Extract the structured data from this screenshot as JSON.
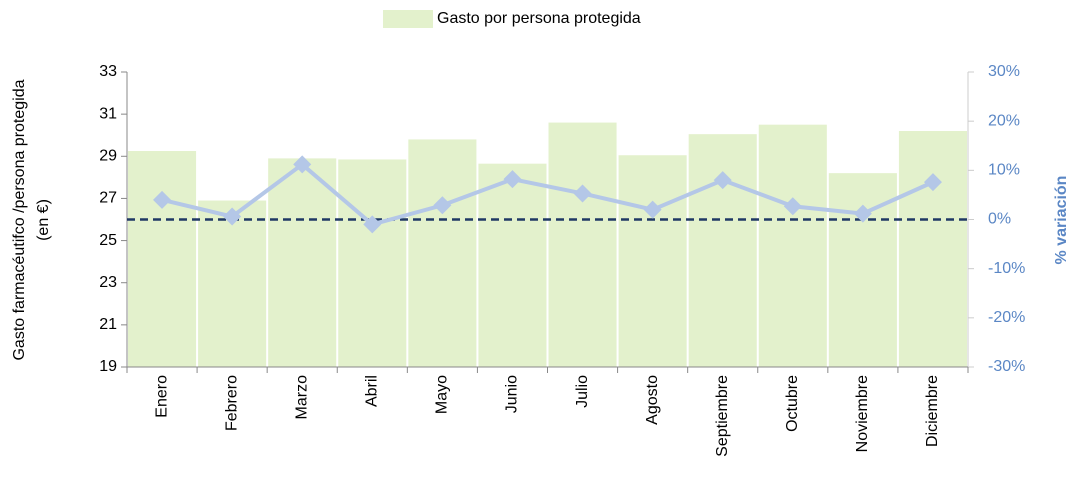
{
  "chart_data": {
    "type": "bar-line",
    "legend_position": "top",
    "ylabel": [
      "Gasto farmacéutifco /persona protegida",
      "(en €)"
    ],
    "y2label": "% variación",
    "categories": [
      "Enero",
      "Febrero",
      "Marzo",
      "Abril",
      "Mayo",
      "Junio",
      "Julio",
      "Agosto",
      "Septiembre",
      "Octubre",
      "Noviembre",
      "Diciembre"
    ],
    "series": [
      {
        "name": "Gasto por persona protegida",
        "type": "bar",
        "color": "#e3f1cc",
        "values": [
          29.25,
          26.9,
          28.9,
          28.85,
          29.8,
          28.65,
          30.6,
          29.05,
          30.05,
          30.5,
          28.2,
          30.2
        ]
      },
      {
        "type": "line",
        "axis": "y2",
        "color": "#b4c7e7",
        "values": [
          4,
          0.6,
          11.2,
          -1,
          2.9,
          8.2,
          5.3,
          2,
          8,
          2.7,
          1.2,
          7.6
        ]
      }
    ],
    "ylim": [
      19,
      33
    ],
    "yticks": [
      19,
      21,
      23,
      25,
      27,
      29,
      31,
      33
    ],
    "y2lim": [
      -30,
      30
    ],
    "y2ticks": [
      {
        "value": -30,
        "label": "-30%"
      },
      {
        "value": -20,
        "label": "-20%"
      },
      {
        "value": -10,
        "label": "-10%"
      },
      {
        "value": 0,
        "label": "0%"
      },
      {
        "value": 10,
        "label": "10%"
      },
      {
        "value": 20,
        "label": "20%"
      },
      {
        "value": 30,
        "label": "30%"
      }
    ],
    "y2_reference_line": 0,
    "reference_line_color": "#1f3864",
    "y2_axis_color": "#5b87c5"
  }
}
